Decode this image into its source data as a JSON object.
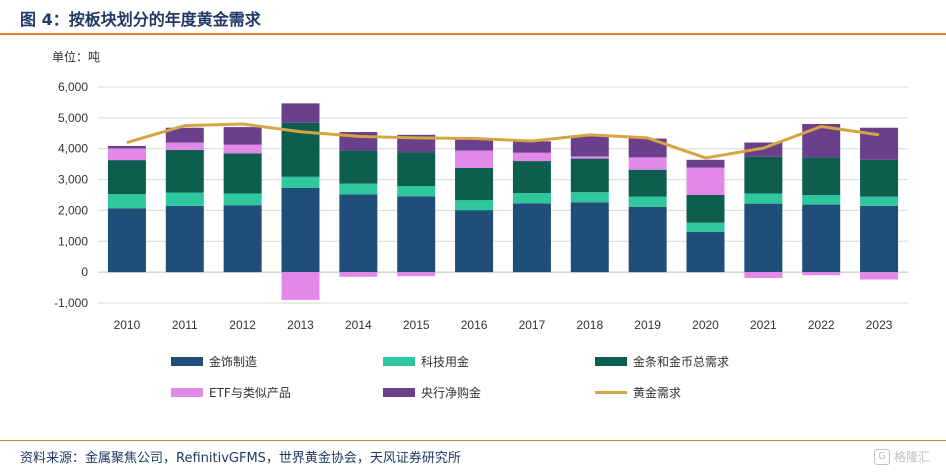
{
  "header": {
    "title": "图 4：按板块划分的年度黄金需求"
  },
  "unit_label": "单位：吨",
  "footer": {
    "source": "资料来源：金属聚焦公司，RefinitivGFMS，世界黄金协会，天风证券研究所"
  },
  "watermark": {
    "icon": "G",
    "text": "格隆汇"
  },
  "chart_data": {
    "type": "bar",
    "stacked": true,
    "categories": [
      "2010",
      "2011",
      "2012",
      "2013",
      "2014",
      "2015",
      "2016",
      "2017",
      "2018",
      "2019",
      "2020",
      "2021",
      "2022",
      "2023"
    ],
    "ylim": [
      -1000,
      6000
    ],
    "yticks": [
      -1000,
      0,
      1000,
      2000,
      3000,
      4000,
      5000,
      6000
    ],
    "ytick_labels": [
      "-1,000",
      "0",
      "1,000",
      "2,000",
      "3,000",
      "4,000",
      "5,000",
      "6,000"
    ],
    "grid": "horizontal",
    "legend_position": "bottom",
    "series": [
      {
        "name": "金饰制造",
        "color": "#1f4e79",
        "values": [
          2070,
          2150,
          2170,
          2730,
          2520,
          2460,
          2010,
          2230,
          2260,
          2120,
          1300,
          2220,
          2190,
          2150
        ]
      },
      {
        "name": "科技用金",
        "color": "#2ec79e",
        "values": [
          460,
          430,
          380,
          360,
          350,
          330,
          320,
          330,
          330,
          330,
          300,
          330,
          310,
          300
        ]
      },
      {
        "name": "金条和金币总需求",
        "color": "#0e5e4f",
        "values": [
          1100,
          1380,
          1300,
          1750,
          1070,
          1100,
          1050,
          1040,
          1090,
          870,
          900,
          1190,
          1220,
          1190
        ]
      },
      {
        "name": "ETF与类似产品",
        "color": "#e188e9",
        "values": [
          380,
          240,
          280,
          -900,
          -150,
          -130,
          560,
          270,
          70,
          400,
          890,
          -190,
          -100,
          -240
        ]
      },
      {
        "name": "央行净购金",
        "color": "#6a3f8c",
        "values": [
          80,
          480,
          570,
          630,
          600,
          560,
          390,
          370,
          660,
          610,
          250,
          460,
          1080,
          1040
        ]
      }
    ],
    "line_series": {
      "name": "黄金需求",
      "color": "#d4a543",
      "values": [
        4200,
        4750,
        4800,
        4550,
        4400,
        4350,
        4330,
        4250,
        4450,
        4350,
        3700,
        4020,
        4720,
        4450
      ]
    }
  }
}
